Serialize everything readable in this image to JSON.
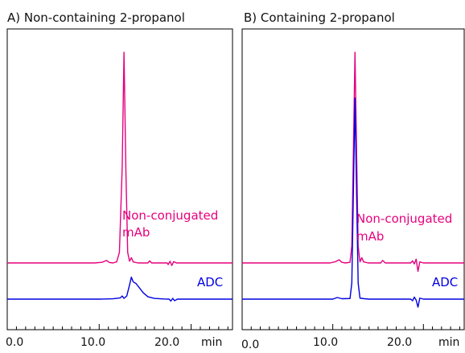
{
  "chart_data": [
    {
      "type": "line",
      "title": "A) Non-containing 2-propanol",
      "xlabel": "",
      "ylabel": "",
      "x_unit": "min",
      "xlim": [
        0,
        24.5
      ],
      "x_ticks": [
        "0.0",
        "10.0",
        "20.0"
      ],
      "grid": false,
      "annotations": [
        {
          "text": "Non-conjugated",
          "color": "#e6007e"
        },
        {
          "text": "mAb",
          "color": "#e6007e"
        },
        {
          "text": "ADC",
          "color": "#0000e0"
        }
      ],
      "series": [
        {
          "name": "Non-conjugated mAb",
          "color": "#e6007e",
          "points": [
            [
              0,
              0
            ],
            [
              9.5,
              0
            ],
            [
              10.3,
              0.3
            ],
            [
              10.8,
              1.2
            ],
            [
              11.1,
              0.2
            ],
            [
              11.5,
              0
            ],
            [
              11.9,
              0.5
            ],
            [
              12.2,
              5
            ],
            [
              12.5,
              45
            ],
            [
              12.7,
              100
            ],
            [
              12.9,
              45
            ],
            [
              13.1,
              5
            ],
            [
              13.3,
              0.8
            ],
            [
              13.5,
              2.5
            ],
            [
              13.7,
              0.5
            ],
            [
              14.2,
              0
            ],
            [
              15.3,
              0
            ],
            [
              15.5,
              1
            ],
            [
              15.7,
              0
            ],
            [
              17.4,
              0
            ],
            [
              17.5,
              -0.8
            ],
            [
              17.7,
              0.8
            ],
            [
              17.9,
              -1.2
            ],
            [
              18.1,
              0.6
            ],
            [
              18.4,
              0
            ],
            [
              20,
              0
            ],
            [
              24.5,
              0
            ]
          ]
        },
        {
          "name": "ADC",
          "color": "#0000e0",
          "points": [
            [
              0,
              0
            ],
            [
              10,
              0
            ],
            [
              11.5,
              0.2
            ],
            [
              12.3,
              0.8
            ],
            [
              12.5,
              2
            ],
            [
              12.7,
              0.5
            ],
            [
              13.0,
              2
            ],
            [
              13.3,
              9
            ],
            [
              13.5,
              14
            ],
            [
              13.7,
              11
            ],
            [
              14.0,
              10
            ],
            [
              14.4,
              7
            ],
            [
              14.8,
              4
            ],
            [
              15.3,
              1.5
            ],
            [
              16,
              0.5
            ],
            [
              17,
              0.1
            ],
            [
              17.6,
              0
            ],
            [
              17.8,
              -1.2
            ],
            [
              18.0,
              0.5
            ],
            [
              18.2,
              -1
            ],
            [
              18.5,
              0
            ],
            [
              20,
              0
            ],
            [
              24.5,
              0
            ]
          ]
        }
      ]
    },
    {
      "type": "line",
      "title": "B) Containing 2-propanol",
      "xlabel": "",
      "ylabel": "",
      "x_unit": "min",
      "xlim": [
        0,
        24.5
      ],
      "x_ticks": [
        "0.0",
        "10.0",
        "20.0"
      ],
      "grid": false,
      "annotations": [
        {
          "text": "Non-conjugated",
          "color": "#e6007e"
        },
        {
          "text": "mAb",
          "color": "#e6007e"
        },
        {
          "text": "ADC",
          "color": "#0000e0"
        }
      ],
      "series": [
        {
          "name": "Non-conjugated mAb",
          "color": "#e6007e",
          "points": [
            [
              0,
              0
            ],
            [
              9.7,
              0
            ],
            [
              10.3,
              0.6
            ],
            [
              10.7,
              1.5
            ],
            [
              11.0,
              0.3
            ],
            [
              11.4,
              0
            ],
            [
              11.9,
              0.3
            ],
            [
              12.1,
              8
            ],
            [
              12.3,
              60
            ],
            [
              12.45,
              100
            ],
            [
              12.6,
              60
            ],
            [
              12.8,
              8
            ],
            [
              13.0,
              0.5
            ],
            [
              13.2,
              2.5
            ],
            [
              13.4,
              0.5
            ],
            [
              13.9,
              0
            ],
            [
              15.3,
              0
            ],
            [
              15.5,
              1.2
            ],
            [
              15.8,
              0
            ],
            [
              18.6,
              0
            ],
            [
              18.8,
              1
            ],
            [
              19.0,
              -0.5
            ],
            [
              19.2,
              1.8
            ],
            [
              19.4,
              -4
            ],
            [
              19.6,
              0.5
            ],
            [
              20,
              0
            ],
            [
              24.5,
              0
            ]
          ]
        },
        {
          "name": "ADC",
          "color": "#0000e0",
          "points": [
            [
              0,
              0
            ],
            [
              10,
              0
            ],
            [
              10.5,
              0.8
            ],
            [
              11,
              0.2
            ],
            [
              11.9,
              0.3
            ],
            [
              12.1,
              8
            ],
            [
              12.3,
              60
            ],
            [
              12.45,
              100
            ],
            [
              12.6,
              60
            ],
            [
              12.8,
              8
            ],
            [
              13.0,
              0.5
            ],
            [
              13.5,
              0.2
            ],
            [
              14,
              0
            ],
            [
              18.6,
              0
            ],
            [
              18.8,
              -0.8
            ],
            [
              19.0,
              1
            ],
            [
              19.2,
              -0.5
            ],
            [
              19.4,
              -4
            ],
            [
              19.6,
              0.5
            ],
            [
              20,
              0
            ],
            [
              24.5,
              0
            ]
          ]
        }
      ]
    }
  ]
}
